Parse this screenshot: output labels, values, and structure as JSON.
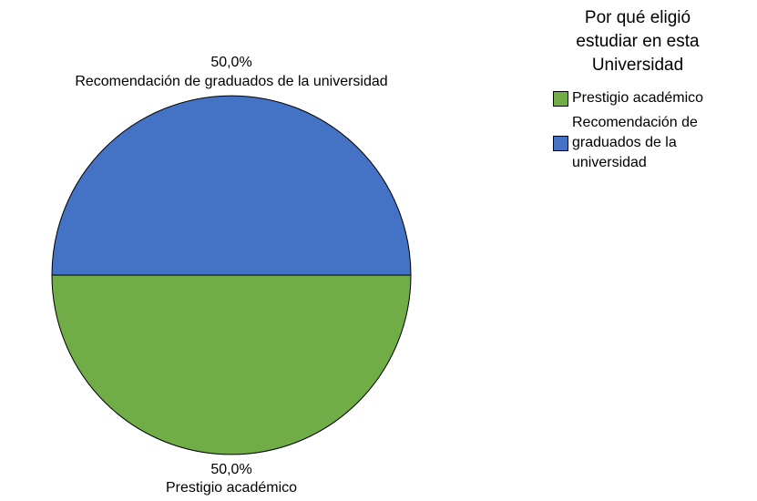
{
  "chart_data": {
    "type": "pie",
    "legend_title": "Por qué eligió estudiar en esta Universidad",
    "categories": [
      "Prestigio académico",
      "Recomendación de graduados de la universidad"
    ],
    "values": [
      50,
      50
    ],
    "value_labels": [
      "50,0%",
      "50,0%"
    ],
    "colors": [
      "#70ad47",
      "#4472c4"
    ],
    "legend": "top-right"
  }
}
